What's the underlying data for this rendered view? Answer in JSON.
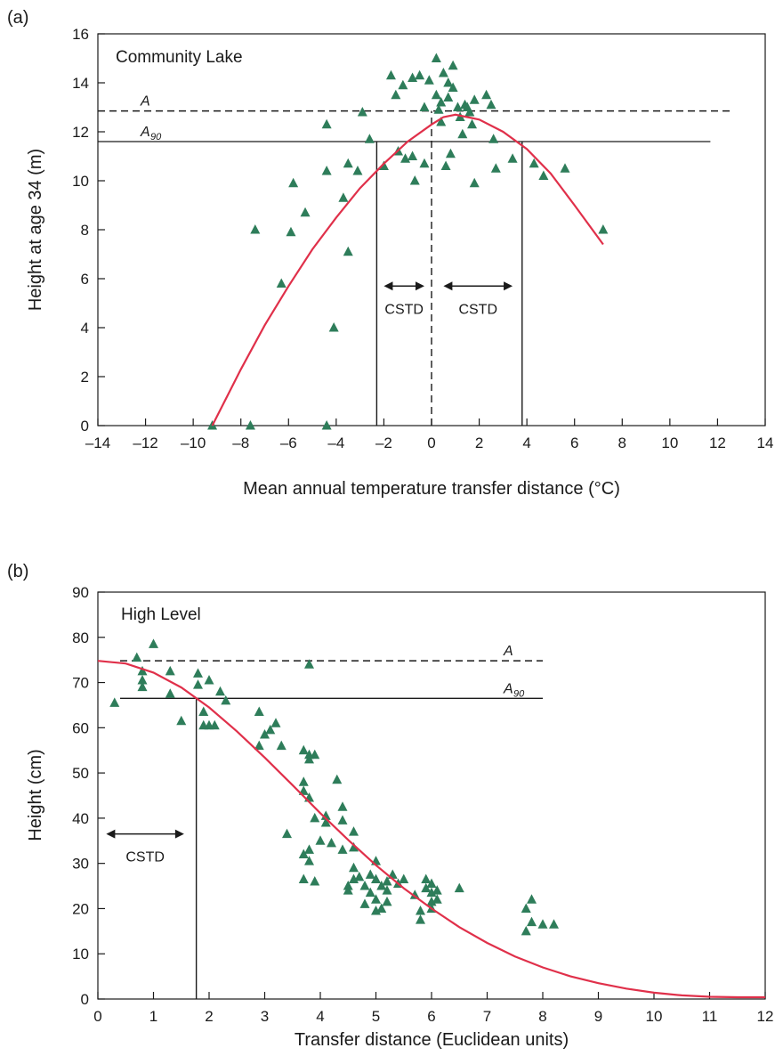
{
  "colors": {
    "curve": "#e0304a",
    "marker": "#2e7d5a",
    "line": "#1a1a1a"
  },
  "chart_data": [
    {
      "type": "scatter",
      "panel_label": "(a)",
      "title": "Community Lake",
      "xlabel": "Mean annual temperature transfer distance (°C)",
      "ylabel": "Height at age 34 (m)",
      "xlim": [
        -14,
        14
      ],
      "ylim": [
        0,
        16
      ],
      "xticks": [
        -14,
        -12,
        -10,
        -8,
        -6,
        -4,
        -2,
        0,
        2,
        4,
        6,
        8,
        10,
        12,
        14
      ],
      "xtick_labels": [
        "–14",
        "–12",
        "–10",
        "–8",
        "–6",
        "–4",
        "–2",
        "0",
        "2",
        "4",
        "6",
        "8",
        "10",
        "12",
        "14"
      ],
      "yticks": [
        0,
        2,
        4,
        6,
        8,
        10,
        12,
        14,
        16
      ],
      "ytick_labels": [
        "0",
        "2",
        "4",
        "6",
        "8",
        "10",
        "12",
        "14",
        "16"
      ],
      "grid": false,
      "points": [
        [
          -9.2,
          0.0
        ],
        [
          -7.6,
          0.0
        ],
        [
          -4.4,
          0.0
        ],
        [
          -7.4,
          8.0
        ],
        [
          -6.3,
          5.8
        ],
        [
          -5.9,
          7.9
        ],
        [
          -5.8,
          9.9
        ],
        [
          -5.3,
          8.7
        ],
        [
          -4.4,
          10.4
        ],
        [
          -4.4,
          12.3
        ],
        [
          -4.1,
          4.0
        ],
        [
          -3.7,
          9.3
        ],
        [
          -3.5,
          10.7
        ],
        [
          -3.5,
          7.1
        ],
        [
          -3.1,
          10.4
        ],
        [
          -2.9,
          12.8
        ],
        [
          -2.6,
          11.7
        ],
        [
          -2.0,
          10.6
        ],
        [
          -1.7,
          14.3
        ],
        [
          -1.5,
          13.5
        ],
        [
          -1.4,
          11.2
        ],
        [
          -1.2,
          13.9
        ],
        [
          -1.1,
          10.9
        ],
        [
          -0.8,
          14.2
        ],
        [
          -0.8,
          11.0
        ],
        [
          -0.7,
          10.0
        ],
        [
          -0.5,
          14.3
        ],
        [
          -0.3,
          13.0
        ],
        [
          -0.3,
          10.7
        ],
        [
          -0.1,
          14.1
        ],
        [
          0.2,
          15.0
        ],
        [
          0.2,
          13.5
        ],
        [
          0.3,
          12.9
        ],
        [
          0.4,
          13.2
        ],
        [
          0.4,
          12.4
        ],
        [
          0.5,
          14.4
        ],
        [
          0.6,
          10.6
        ],
        [
          0.7,
          14.0
        ],
        [
          0.7,
          13.4
        ],
        [
          0.8,
          11.1
        ],
        [
          0.9,
          13.8
        ],
        [
          0.9,
          14.7
        ],
        [
          1.1,
          13.0
        ],
        [
          1.2,
          12.6
        ],
        [
          1.3,
          11.9
        ],
        [
          1.4,
          13.1
        ],
        [
          1.5,
          13.0
        ],
        [
          1.6,
          12.8
        ],
        [
          1.7,
          12.3
        ],
        [
          1.8,
          13.3
        ],
        [
          1.8,
          9.9
        ],
        [
          2.3,
          13.5
        ],
        [
          2.5,
          13.1
        ],
        [
          2.6,
          11.7
        ],
        [
          2.7,
          10.5
        ],
        [
          3.4,
          10.9
        ],
        [
          4.3,
          10.7
        ],
        [
          4.7,
          10.2
        ],
        [
          5.6,
          10.5
        ],
        [
          7.2,
          8.0
        ]
      ],
      "curve": [
        [
          -9.2,
          0.0
        ],
        [
          -8.0,
          2.3
        ],
        [
          -7.0,
          4.1
        ],
        [
          -6.0,
          5.7
        ],
        [
          -5.0,
          7.2
        ],
        [
          -4.0,
          8.5
        ],
        [
          -3.0,
          9.7
        ],
        [
          -2.0,
          10.7
        ],
        [
          -1.0,
          11.6
        ],
        [
          0.0,
          12.3
        ],
        [
          0.5,
          12.6
        ],
        [
          1.0,
          12.7
        ],
        [
          1.5,
          12.6
        ],
        [
          2.0,
          12.5
        ],
        [
          3.0,
          12.0
        ],
        [
          4.0,
          11.3
        ],
        [
          5.0,
          10.3
        ],
        [
          6.0,
          9.0
        ],
        [
          7.2,
          7.4
        ]
      ],
      "A": {
        "label": "A",
        "y": 12.85,
        "x_range": [
          -14,
          12.6
        ]
      },
      "A90": {
        "label": "A",
        "subscript": "90",
        "y": 11.6,
        "x_range": [
          -14,
          11.7
        ]
      },
      "vlines": [
        {
          "x": -2.3,
          "y_range": [
            0,
            11.6
          ],
          "dashed": false
        },
        {
          "x": 0.0,
          "y_range": [
            0,
            12.85
          ],
          "dashed": true
        },
        {
          "x": 3.8,
          "y_range": [
            0,
            11.6
          ],
          "dashed": false
        }
      ],
      "arrows": [
        {
          "x_range": [
            -2.0,
            -0.3
          ],
          "y": 5.7,
          "label": "CSTD"
        },
        {
          "x_range": [
            0.5,
            3.4
          ],
          "y": 5.7,
          "label": "CSTD"
        }
      ]
    },
    {
      "type": "scatter",
      "panel_label": "(b)",
      "title": "High Level",
      "xlabel": "Transfer distance (Euclidean units)",
      "ylabel": "Height (cm)",
      "xlim": [
        0,
        12
      ],
      "ylim": [
        0,
        90
      ],
      "xticks": [
        0,
        1,
        2,
        3,
        4,
        5,
        6,
        7,
        8,
        9,
        10,
        11,
        12
      ],
      "xtick_labels": [
        "0",
        "1",
        "2",
        "3",
        "4",
        "5",
        "6",
        "7",
        "8",
        "9",
        "10",
        "11",
        "12"
      ],
      "yticks": [
        0,
        10,
        20,
        30,
        40,
        50,
        60,
        70,
        80,
        90
      ],
      "ytick_labels": [
        "0",
        "10",
        "20",
        "30",
        "40",
        "50",
        "60",
        "70",
        "80",
        "90"
      ],
      "grid": false,
      "points": [
        [
          0.3,
          65.5
        ],
        [
          0.7,
          75.5
        ],
        [
          0.8,
          72.5
        ],
        [
          0.8,
          70.5
        ],
        [
          0.8,
          69.0
        ],
        [
          1.0,
          78.5
        ],
        [
          1.3,
          72.5
        ],
        [
          1.3,
          67.5
        ],
        [
          1.5,
          61.5
        ],
        [
          1.8,
          72.0
        ],
        [
          1.8,
          69.5
        ],
        [
          1.9,
          63.5
        ],
        [
          1.9,
          60.5
        ],
        [
          2.0,
          60.5
        ],
        [
          2.0,
          70.5
        ],
        [
          2.1,
          60.5
        ],
        [
          2.2,
          68.0
        ],
        [
          2.3,
          66.0
        ],
        [
          2.9,
          63.5
        ],
        [
          2.9,
          56.0
        ],
        [
          3.0,
          58.5
        ],
        [
          3.1,
          59.5
        ],
        [
          3.2,
          61.0
        ],
        [
          3.3,
          56.0
        ],
        [
          3.4,
          36.5
        ],
        [
          3.7,
          55.0
        ],
        [
          3.7,
          48.0
        ],
        [
          3.7,
          46.0
        ],
        [
          3.7,
          32.0
        ],
        [
          3.7,
          26.5
        ],
        [
          3.8,
          54.0
        ],
        [
          3.8,
          44.5
        ],
        [
          3.8,
          53.0
        ],
        [
          3.8,
          74.0
        ],
        [
          3.8,
          33.0
        ],
        [
          3.8,
          30.5
        ],
        [
          3.9,
          54.0
        ],
        [
          3.9,
          40.0
        ],
        [
          3.9,
          26.0
        ],
        [
          4.0,
          35.0
        ],
        [
          4.1,
          40.5
        ],
        [
          4.1,
          39.0
        ],
        [
          4.2,
          34.5
        ],
        [
          4.3,
          48.5
        ],
        [
          4.4,
          42.5
        ],
        [
          4.4,
          33.0
        ],
        [
          4.4,
          39.5
        ],
        [
          4.5,
          24.0
        ],
        [
          4.5,
          25.0
        ],
        [
          4.6,
          37.0
        ],
        [
          4.6,
          33.5
        ],
        [
          4.6,
          29.0
        ],
        [
          4.6,
          26.5
        ],
        [
          4.7,
          27.0
        ],
        [
          4.8,
          25.0
        ],
        [
          4.8,
          21.0
        ],
        [
          4.9,
          27.5
        ],
        [
          4.9,
          23.5
        ],
        [
          5.0,
          30.5
        ],
        [
          5.0,
          26.5
        ],
        [
          5.0,
          22.0
        ],
        [
          5.0,
          19.5
        ],
        [
          5.1,
          25.0
        ],
        [
          5.1,
          20.0
        ],
        [
          5.2,
          26.0
        ],
        [
          5.2,
          24.0
        ],
        [
          5.2,
          21.5
        ],
        [
          5.3,
          27.5
        ],
        [
          5.4,
          25.5
        ],
        [
          5.5,
          26.5
        ],
        [
          5.7,
          23.0
        ],
        [
          5.8,
          19.5
        ],
        [
          5.8,
          17.5
        ],
        [
          5.9,
          26.5
        ],
        [
          5.9,
          24.5
        ],
        [
          6.0,
          23.5
        ],
        [
          6.0,
          21.5
        ],
        [
          6.0,
          20.0
        ],
        [
          6.0,
          25.5
        ],
        [
          6.1,
          24.0
        ],
        [
          6.1,
          22.0
        ],
        [
          6.5,
          24.5
        ],
        [
          7.7,
          20.0
        ],
        [
          7.7,
          15.0
        ],
        [
          7.8,
          22.0
        ],
        [
          7.8,
          17.0
        ],
        [
          8.0,
          16.5
        ],
        [
          8.2,
          16.5
        ]
      ],
      "curve": [
        [
          0.0,
          74.8
        ],
        [
          0.5,
          74.2
        ],
        [
          1.0,
          72.2
        ],
        [
          1.5,
          68.9
        ],
        [
          2.0,
          64.5
        ],
        [
          2.5,
          59.2
        ],
        [
          3.0,
          53.4
        ],
        [
          3.5,
          47.3
        ],
        [
          4.0,
          41.1
        ],
        [
          4.5,
          35.2
        ],
        [
          5.0,
          29.6
        ],
        [
          5.5,
          24.5
        ],
        [
          6.0,
          20.0
        ],
        [
          6.5,
          15.9
        ],
        [
          7.0,
          12.4
        ],
        [
          7.5,
          9.4
        ],
        [
          8.0,
          7.0
        ],
        [
          8.5,
          5.0
        ],
        [
          9.0,
          3.5
        ],
        [
          9.5,
          2.3
        ],
        [
          10.0,
          1.4
        ],
        [
          10.5,
          0.8
        ],
        [
          11.0,
          0.5
        ],
        [
          11.5,
          0.4
        ],
        [
          12.0,
          0.4
        ]
      ],
      "A": {
        "label": "A",
        "y": 74.8,
        "x_range": [
          0.4,
          8.0
        ]
      },
      "A90": {
        "label": "A",
        "subscript": "90",
        "y": 66.5,
        "x_range": [
          0.4,
          8.0
        ]
      },
      "vlines": [
        {
          "x": 1.77,
          "y_range": [
            0,
            66.5
          ],
          "dashed": false
        }
      ],
      "arrows": [
        {
          "x_range": [
            0.15,
            1.55
          ],
          "y": 36.5,
          "label": "CSTD"
        }
      ]
    }
  ]
}
